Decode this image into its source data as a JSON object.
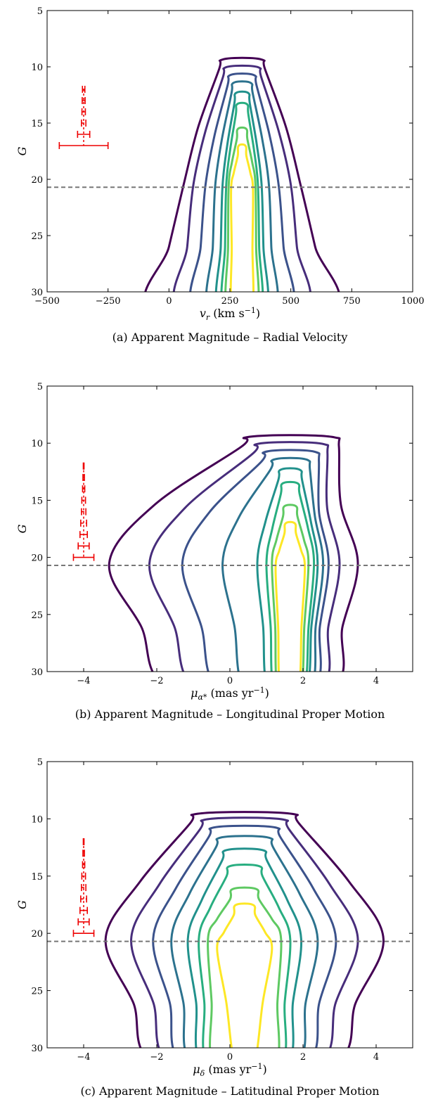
{
  "chart_data": [
    {
      "type": "contour",
      "caption": "(a) Apparent Magnitude – Radial Velocity",
      "xlabel": "v_r (km s^-1)",
      "ylabel": "G",
      "xlim": [
        -500,
        1000
      ],
      "ylim": [
        30,
        5
      ],
      "y_inverted": true,
      "xticks": [
        -500,
        -250,
        0,
        250,
        500,
        750,
        1000
      ],
      "xtick_labels": [
        "−500",
        "−250",
        "0",
        "250",
        "500",
        "750",
        "1000"
      ],
      "yticks": [
        5,
        10,
        15,
        20,
        25,
        30
      ],
      "ytick_labels": [
        "5",
        "10",
        "15",
        "20",
        "25",
        "30"
      ],
      "hline": 20.7,
      "error_bars": [
        {
          "y": 12,
          "halfwidth": 5,
          "style": "dashed"
        },
        {
          "y": 13,
          "halfwidth": 6,
          "style": "dashed"
        },
        {
          "y": 14,
          "halfwidth": 7,
          "style": "dashed"
        },
        {
          "y": 15,
          "halfwidth": 9,
          "style": "dashed"
        },
        {
          "y": 16,
          "halfwidth": 25,
          "style": "solid"
        },
        {
          "y": 17,
          "halfwidth": 100,
          "style": "solid"
        }
      ],
      "error_bar_center_x": -350,
      "contours": [
        {
          "level": 1,
          "color": "#440154",
          "x_center": 300,
          "y_top": 9.2,
          "mid_halfwidth": 240,
          "y_bottom_halfwidth": 360
        },
        {
          "level": 2,
          "color": "#472d7b",
          "x_center": 300,
          "y_top": 9.9,
          "mid_halfwidth": 200,
          "y_bottom_halfwidth": 250
        },
        {
          "level": 3,
          "color": "#3b528b",
          "x_center": 300,
          "y_top": 10.6,
          "mid_halfwidth": 150,
          "y_bottom_halfwidth": 190
        },
        {
          "level": 4,
          "color": "#2c728e",
          "x_center": 300,
          "y_top": 11.3,
          "mid_halfwidth": 110,
          "y_bottom_halfwidth": 130
        },
        {
          "level": 5,
          "color": "#21918c",
          "x_center": 300,
          "y_top": 12.2,
          "mid_halfwidth": 80,
          "y_bottom_halfwidth": 95
        },
        {
          "level": 6,
          "color": "#28ae80",
          "x_center": 300,
          "y_top": 13.2,
          "mid_halfwidth": 65,
          "y_bottom_halfwidth": 75
        },
        {
          "level": 7,
          "color": "#5ec962",
          "x_center": 300,
          "y_top": 15.4,
          "mid_halfwidth": 55,
          "y_bottom_halfwidth": 60
        },
        {
          "level": 8,
          "color": "#fde725",
          "x_center": 300,
          "y_top": 16.9,
          "mid_halfwidth": 45,
          "y_bottom_halfwidth": 40
        }
      ]
    },
    {
      "type": "contour",
      "caption": "(b) Apparent Magnitude – Longitudinal Proper Motion",
      "xlabel": "μ_α* (mas yr^-1)",
      "ylabel": "G",
      "xlim": [
        -5,
        5
      ],
      "ylim": [
        30,
        5
      ],
      "y_inverted": true,
      "xticks": [
        -4,
        -2,
        0,
        2,
        4
      ],
      "xtick_labels": [
        "−4",
        "−2",
        "0",
        "2",
        "4"
      ],
      "yticks": [
        5,
        10,
        15,
        20,
        25,
        30
      ],
      "ytick_labels": [
        "5",
        "10",
        "15",
        "20",
        "25",
        "30"
      ],
      "hline": 20.7,
      "error_bars": [
        {
          "y": 12,
          "halfwidth": 0.01,
          "style": "dashed"
        },
        {
          "y": 13,
          "halfwidth": 0.02,
          "style": "dashed"
        },
        {
          "y": 14,
          "halfwidth": 0.03,
          "style": "dashed"
        },
        {
          "y": 15,
          "halfwidth": 0.05,
          "style": "dashed"
        },
        {
          "y": 16,
          "halfwidth": 0.06,
          "style": "dashed"
        },
        {
          "y": 17,
          "halfwidth": 0.08,
          "style": "dashed"
        },
        {
          "y": 18,
          "halfwidth": 0.1,
          "style": "solid"
        },
        {
          "y": 19,
          "halfwidth": 0.15,
          "style": "solid"
        },
        {
          "y": 20,
          "halfwidth": 0.28,
          "style": "solid"
        }
      ],
      "error_bar_center_x": -4,
      "contours": [
        {
          "level": 1,
          "color": "#440154",
          "x_center": 1.65,
          "y_top": 9.3,
          "left_x_mid": -3.3,
          "right_x_mid": 3.5
        },
        {
          "level": 2,
          "color": "#472d7b",
          "x_center": 1.65,
          "y_top": 9.9,
          "left_x_mid": -2.2,
          "right_x_mid": 3.0
        },
        {
          "level": 3,
          "color": "#3b528b",
          "x_center": 1.65,
          "y_top": 10.6,
          "left_x_mid": -1.3,
          "right_x_mid": 2.7
        },
        {
          "level": 4,
          "color": "#2c728e",
          "x_center": 1.65,
          "y_top": 11.3,
          "left_x_mid": -0.2,
          "right_x_mid": 2.55
        },
        {
          "level": 5,
          "color": "#21918c",
          "x_center": 1.65,
          "y_top": 12.2,
          "left_x_mid": 0.75,
          "right_x_mid": 2.4
        },
        {
          "level": 6,
          "color": "#28ae80",
          "x_center": 1.65,
          "y_top": 13.4,
          "left_x_mid": 1.0,
          "right_x_mid": 2.3
        },
        {
          "level": 7,
          "color": "#5ec962",
          "x_center": 1.65,
          "y_top": 15.4,
          "left_x_mid": 1.15,
          "right_x_mid": 2.15
        },
        {
          "level": 8,
          "color": "#fde725",
          "x_center": 1.65,
          "y_top": 16.9,
          "left_x_mid": 1.25,
          "right_x_mid": 2.05
        }
      ]
    },
    {
      "type": "contour",
      "caption": "(c) Apparent Magnitude – Latitudinal Proper Motion",
      "xlabel": "μ_δ (mas yr^-1)",
      "ylabel": "G",
      "xlim": [
        -5,
        5
      ],
      "ylim": [
        30,
        5
      ],
      "y_inverted": true,
      "xticks": [
        -4,
        -2,
        0,
        2,
        4
      ],
      "xtick_labels": [
        "−4",
        "−2",
        "0",
        "2",
        "4"
      ],
      "yticks": [
        5,
        10,
        15,
        20,
        25,
        30
      ],
      "ytick_labels": [
        "5",
        "10",
        "15",
        "20",
        "25",
        "30"
      ],
      "hline": 20.7,
      "error_bars": [
        {
          "y": 12,
          "halfwidth": 0.01,
          "style": "dashed"
        },
        {
          "y": 13,
          "halfwidth": 0.02,
          "style": "dashed"
        },
        {
          "y": 14,
          "halfwidth": 0.03,
          "style": "dashed"
        },
        {
          "y": 15,
          "halfwidth": 0.05,
          "style": "dashed"
        },
        {
          "y": 16,
          "halfwidth": 0.06,
          "style": "dashed"
        },
        {
          "y": 17,
          "halfwidth": 0.08,
          "style": "dashed"
        },
        {
          "y": 18,
          "halfwidth": 0.1,
          "style": "solid"
        },
        {
          "y": 19,
          "halfwidth": 0.15,
          "style": "solid"
        },
        {
          "y": 20,
          "halfwidth": 0.28,
          "style": "solid"
        }
      ],
      "error_bar_center_x": -4,
      "contours": [
        {
          "level": 1,
          "color": "#440154",
          "x_center": 0.4,
          "y_top": 9.4,
          "mid_halfwidth": 3.8,
          "y_bottom_halfwidth": 2.3
        },
        {
          "level": 2,
          "color": "#472d7b",
          "x_center": 0.4,
          "y_top": 9.9,
          "mid_halfwidth": 3.1,
          "y_bottom_halfwidth": 1.9
        },
        {
          "level": 3,
          "color": "#3b528b",
          "x_center": 0.4,
          "y_top": 10.6,
          "mid_halfwidth": 2.5,
          "y_bottom_halfwidth": 1.6
        },
        {
          "level": 4,
          "color": "#2c728e",
          "x_center": 0.4,
          "y_top": 11.5,
          "mid_halfwidth": 2.0,
          "y_bottom_halfwidth": 1.35
        },
        {
          "level": 5,
          "color": "#21918c",
          "x_center": 0.4,
          "y_top": 12.6,
          "mid_halfwidth": 1.55,
          "y_bottom_halfwidth": 1.1
        },
        {
          "level": 6,
          "color": "#28ae80",
          "x_center": 0.4,
          "y_top": 14.0,
          "mid_halfwidth": 1.25,
          "y_bottom_halfwidth": 0.95
        },
        {
          "level": 7,
          "color": "#5ec962",
          "x_center": 0.4,
          "y_top": 16.0,
          "mid_halfwidth": 1.0,
          "y_bottom_halfwidth": 0.8
        },
        {
          "level": 8,
          "color": "#fde725",
          "x_center": 0.4,
          "y_top": 17.4,
          "mid_halfwidth": 0.75,
          "y_bottom_halfwidth": 0.25
        }
      ]
    }
  ]
}
